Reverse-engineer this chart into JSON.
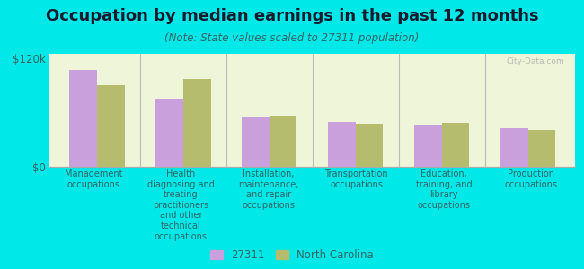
{
  "title": "Occupation by median earnings in the past 12 months",
  "subtitle": "(Note: State values scaled to 27311 population)",
  "background_color": "#00e8e8",
  "plot_bg_color": "#eef5d8",
  "categories": [
    "Management\noccupations",
    "Health\ndiagnosing and\ntreating\npractitioners\nand other\ntechnical\noccupations",
    "Installation,\nmaintenance,\nand repair\noccupations",
    "Transportation\noccupations",
    "Education,\ntraining, and\nlibrary\noccupations",
    "Production\noccupations"
  ],
  "values_27311": [
    107000,
    75000,
    55000,
    50000,
    47000,
    43000
  ],
  "values_nc": [
    90000,
    97000,
    57000,
    48000,
    49000,
    41000
  ],
  "color_27311": "#c9a0dc",
  "color_nc": "#b5bc6e",
  "ylim": [
    0,
    125000
  ],
  "yticks": [
    0,
    120000
  ],
  "ytick_labels": [
    "$0",
    "$120k"
  ],
  "legend_labels": [
    "27311",
    "North Carolina"
  ],
  "watermark": "City-Data.com",
  "title_fontsize": 13,
  "subtitle_fontsize": 8.5,
  "label_fontsize": 7,
  "tick_color": "#336666",
  "title_color": "#1a1a2e",
  "subtitle_color": "#336666"
}
